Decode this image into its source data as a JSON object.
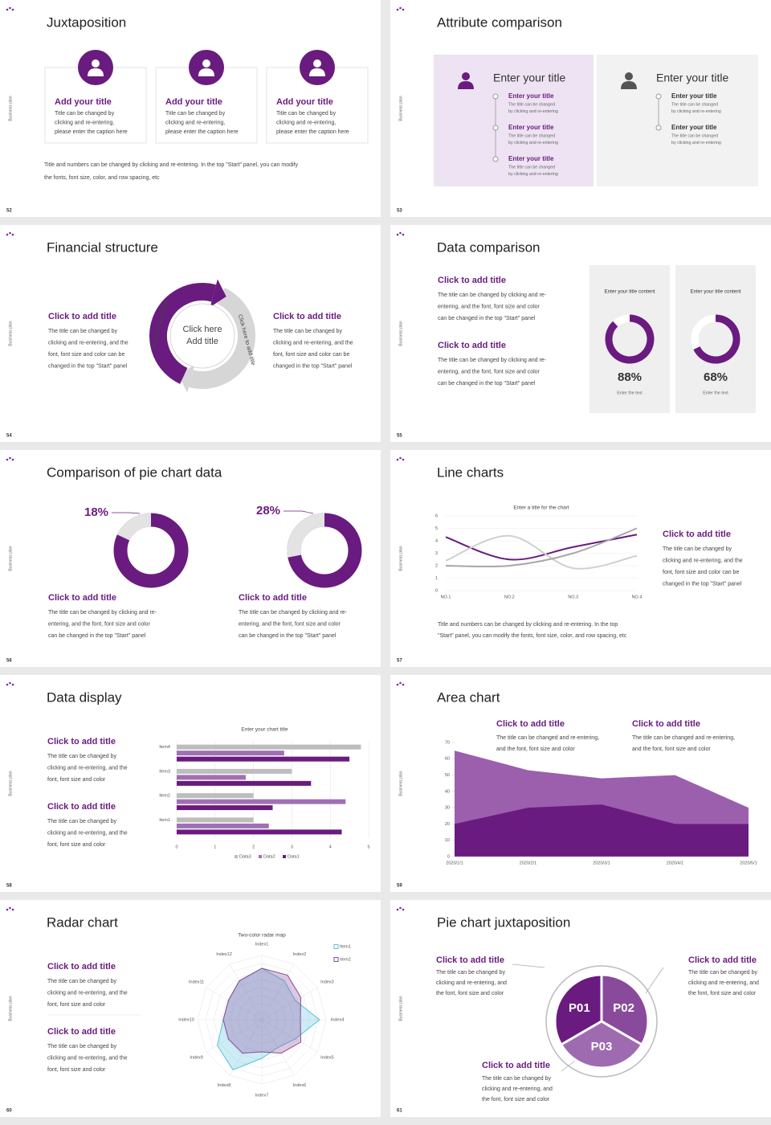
{
  "slides": [
    {
      "page": "52",
      "side": "Business plan",
      "title": "Juxtaposition",
      "cards": [
        {
          "title": "Add your title",
          "lines": [
            "Title can be changed by",
            "clicking and re-entering,",
            "please enter the caption here"
          ]
        },
        {
          "title": "Add your title",
          "lines": [
            "Title can be changed by",
            "clicking and re-entering,",
            "please enter the caption here"
          ]
        },
        {
          "title": "Add your title",
          "lines": [
            "Title can be changed by",
            "clicking and re-entering,",
            "please enter the caption here"
          ]
        }
      ],
      "footer": [
        "Title and numbers can be changed by clicking and re-entering. In the top \"Start\" panel, you can modify",
        "the fonts, font size, color, and row spacing, etc"
      ]
    },
    {
      "page": "53",
      "side": "Business plan",
      "title": "Attribute comparison",
      "panels": [
        {
          "title": "Enter your title",
          "items": [
            {
              "title": "Enter your title",
              "lines": [
                "The title can be changed",
                "by clicking and re-entering"
              ]
            },
            {
              "title": "Enter your title",
              "lines": [
                "The title can be changed",
                "by clicking and re-entering"
              ]
            },
            {
              "title": "Enter your title",
              "lines": [
                "The title can be changed",
                "by clicking and re-entering"
              ]
            }
          ]
        },
        {
          "title": "Enter your title",
          "items": [
            {
              "title": "Enter your title",
              "lines": [
                "The title can be changed",
                "by clicking and re-entering"
              ]
            },
            {
              "title": "Enter your title",
              "lines": [
                "The title can be changed",
                "by clicking and re-entering"
              ]
            }
          ]
        }
      ]
    },
    {
      "page": "54",
      "side": "Business plan",
      "title": "Financial structure",
      "blocks": [
        {
          "title": "Click to add title",
          "lines": [
            "The title can be changed by",
            "clicking and re-entering, and the",
            "font, font size and color can be",
            "changed in the top \"Start\" panel"
          ]
        },
        {
          "title": "Click to add title",
          "lines": [
            "The title can be changed by",
            "clicking and re-entering, and the",
            "font, font size and color can be",
            "changed in the top \"Start\" panel"
          ]
        }
      ],
      "center": [
        "Click here",
        "Add title"
      ],
      "arrows": [
        "Click here to add title",
        "Click here to add title"
      ]
    },
    {
      "page": "55",
      "side": "Business plan",
      "title": "Data comparison",
      "blocks": [
        {
          "title": "Click to add title",
          "lines": [
            "The title can be changed by clicking and re-",
            "entering, and the font, font size and color",
            "can be changed in the top \"Start\" panel"
          ]
        },
        {
          "title": "Click to add title",
          "lines": [
            "The title can be changed by clicking and re-",
            "entering, and the font, font size and color",
            "can be changed in the top \"Start\" panel"
          ]
        }
      ],
      "chart_data": [
        {
          "type": "donut",
          "title": "Enter your title content",
          "values": [
            88
          ],
          "value_labels": [
            "88%"
          ],
          "caption": "Enter the text",
          "color": "#6a1b7f"
        },
        {
          "type": "donut",
          "title": "Enter your title content",
          "values": [
            68
          ],
          "value_labels": [
            "68%"
          ],
          "caption": "Enter the text",
          "color": "#6a1b7f"
        }
      ]
    },
    {
      "page": "56",
      "side": "Business plan",
      "title": "Comparison of pie chart data",
      "blocks": [
        {
          "title": "Click to add title",
          "lines": [
            "The title can be changed by clicking and re-",
            "entering, and the font, font size and color",
            "can be changed in the top \"Start\" panel"
          ]
        },
        {
          "title": "Click to add title",
          "lines": [
            "The title can be changed by clicking and re-",
            "entering, and the font, font size and color",
            "can be changed in the top \"Start\" panel"
          ]
        }
      ],
      "chart_data": [
        {
          "type": "donut",
          "values": [
            18
          ],
          "value_labels": [
            "18%"
          ],
          "color": "#e3e3e3"
        },
        {
          "type": "donut",
          "values": [
            28
          ],
          "value_labels": [
            "28%"
          ],
          "color": "#e3e3e3"
        }
      ]
    },
    {
      "page": "57",
      "side": "Business plan",
      "title": "Line charts",
      "blocks": [
        {
          "title": "Click to add title",
          "lines": [
            "The title can be changed by",
            "clicking and re-entering, and the",
            "font, font size and color can be",
            "changed in the top \"Start\" panel"
          ]
        }
      ],
      "footer": [
        "Title and numbers can be changed by clicking and re-entering. In the top",
        "\"Start\" panel, you can modify the fonts, font size, color, and row spacing, etc"
      ],
      "chart_data": {
        "type": "line",
        "title": "Enter a title for the chart",
        "categories": [
          "NO.1",
          "NO.2",
          "NO.3",
          "NO.4"
        ],
        "ylim": [
          0,
          6
        ],
        "yticks": [
          0,
          1,
          2,
          3,
          4,
          5,
          6
        ],
        "grid": true,
        "series": [
          {
            "color": "#6a1b7f",
            "values": [
              4.3,
              2.5,
              3.5,
              4.5
            ]
          },
          {
            "color": "#d0d0d0",
            "values": [
              2.4,
              4.4,
              1.8,
              2.8
            ]
          },
          {
            "color": "#a8a8a8",
            "values": [
              2,
              2,
              3,
              5
            ]
          }
        ]
      }
    },
    {
      "page": "58",
      "side": "Business plan",
      "title": "Data display",
      "blocks": [
        {
          "title": "Click to add title",
          "lines": [
            "The title can be changed by",
            "clicking and re-entering, and the",
            "font, font size and color"
          ]
        },
        {
          "title": "Click to add title",
          "lines": [
            "The title can be changed by",
            "clicking and re-entering, and the",
            "font, font size and color"
          ]
        }
      ],
      "chart_data": {
        "type": "bar",
        "horizontal": true,
        "title": "Enter your chart title",
        "categories": [
          "Item1",
          "Item2",
          "Item3",
          "Item4"
        ],
        "xlim": [
          0,
          5
        ],
        "xticks": [
          0,
          1,
          2,
          3,
          4,
          5
        ],
        "grid": true,
        "series": [
          {
            "name": "Data3",
            "color": "#bdbdbd",
            "values": [
              2,
              2,
              3,
              4.8
            ]
          },
          {
            "name": "Data2",
            "color": "#a070b4",
            "values": [
              2.4,
              4.4,
              1.8,
              2.8
            ]
          },
          {
            "name": "Data1",
            "color": "#6a1b7f",
            "values": [
              4.3,
              2.5,
              3.5,
              4.5
            ]
          }
        ]
      }
    },
    {
      "page": "59",
      "side": "Business plan",
      "title": "Area chart",
      "blocks": [
        {
          "title": "Click to add title",
          "lines": [
            "The title can be changed and re-entering,",
            "and the font, font size and color"
          ]
        },
        {
          "title": "Click to add title",
          "lines": [
            "The title can be changed and re-entering,",
            "and the font, font size and color"
          ]
        }
      ],
      "chart_data": {
        "type": "area",
        "categories": [
          "2020/1/1",
          "2020/2/1",
          "2020/3/1",
          "2020/4/1",
          "2020/5/1"
        ],
        "ylim": [
          0,
          70
        ],
        "yticks": [
          0,
          10,
          20,
          30,
          40,
          50,
          60,
          70
        ],
        "series": [
          {
            "color": "#9b5fae",
            "values": [
              65,
              53,
              48,
              50,
              30
            ]
          },
          {
            "color": "#6a1b7f",
            "values": [
              20,
              30,
              32,
              20,
              20
            ]
          }
        ]
      }
    },
    {
      "page": "60",
      "side": "Business plan",
      "title": "Radar chart",
      "blocks": [
        {
          "title": "Click to add title",
          "lines": [
            "The title can be changed by",
            "clicking and re-entering, and the",
            "font, font size and color"
          ]
        },
        {
          "title": "Click to add title",
          "lines": [
            "The title can be changed by",
            "clicking and re-entering, and the",
            "font, font size and color"
          ]
        }
      ],
      "chart_data": {
        "type": "radar",
        "title": "Two-color radar map",
        "categories": [
          "Index1",
          "Index2",
          "Index3",
          "Index4",
          "Index5",
          "Index6",
          "Index7",
          "Index8",
          "Index9",
          "Index10",
          "Index11",
          "Index12"
        ],
        "rlim": [
          0,
          10
        ],
        "series": [
          {
            "name": "Item1",
            "color": "#5bc0de",
            "values": [
              8,
              7,
              6,
              9,
              6,
              5,
              6,
              9,
              8,
              6,
              6,
              7
            ]
          },
          {
            "name": "Item2",
            "color": "#8a4a9c",
            "values": [
              8,
              8,
              7,
              6,
              7,
              6,
              5,
              6,
              6,
              6,
              6,
              7
            ]
          }
        ]
      }
    },
    {
      "page": "61",
      "side": "Business plan",
      "title": "Pie chart juxtaposition",
      "blocks": [
        {
          "title": "Click to add title",
          "lines": [
            "The title can be changed by",
            "clicking and re-entering, and",
            "the font, font size and color"
          ]
        },
        {
          "title": "Click to add title",
          "lines": [
            "The title can be changed by",
            "clicking and re-entering, and",
            "the font, font size and color"
          ]
        },
        {
          "title": "Click to add title",
          "lines": [
            "The title can be changed by",
            "clicking and re-entering, and",
            "the font, font size and color"
          ]
        }
      ],
      "chart_data": {
        "type": "pie",
        "categories": [
          "P01",
          "P02",
          "P03"
        ],
        "values": [
          33.3,
          33.3,
          33.3
        ],
        "colors": [
          "#6a1b7f",
          "#8a4a9c",
          "#9f6bb0"
        ]
      }
    }
  ]
}
